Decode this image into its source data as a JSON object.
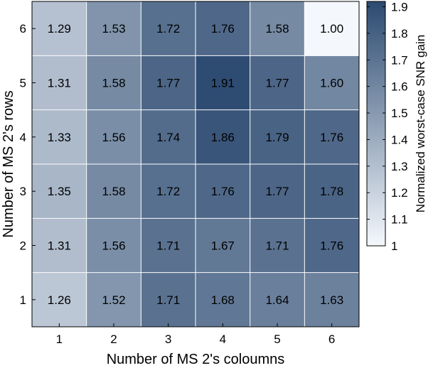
{
  "chart_data": {
    "type": "heatmap",
    "title": "",
    "xlabel": "Number of MS 2's coloumns",
    "ylabel": "Number of MS 2's rows",
    "colorbar_label": "Normalized worst-case SNR gain",
    "x_categories": [
      "1",
      "2",
      "3",
      "4",
      "5",
      "6"
    ],
    "y_categories": [
      "1",
      "2",
      "3",
      "4",
      "5",
      "6"
    ],
    "values": [
      [
        1.26,
        1.52,
        1.71,
        1.68,
        1.64,
        1.63
      ],
      [
        1.31,
        1.56,
        1.71,
        1.67,
        1.71,
        1.76
      ],
      [
        1.35,
        1.58,
        1.72,
        1.76,
        1.77,
        1.78
      ],
      [
        1.33,
        1.56,
        1.74,
        1.86,
        1.79,
        1.76
      ],
      [
        1.31,
        1.58,
        1.77,
        1.91,
        1.77,
        1.6
      ],
      [
        1.29,
        1.53,
        1.72,
        1.76,
        1.58,
        1.0
      ]
    ],
    "value_labels": [
      [
        "1.26",
        "1.52",
        "1.71",
        "1.68",
        "1.64",
        "1.63"
      ],
      [
        "1.31",
        "1.56",
        "1.71",
        "1.67",
        "1.71",
        "1.76"
      ],
      [
        "1.35",
        "1.58",
        "1.72",
        "1.76",
        "1.77",
        "1.78"
      ],
      [
        "1.33",
        "1.56",
        "1.74",
        "1.86",
        "1.79",
        "1.76"
      ],
      [
        "1.31",
        "1.58",
        "1.77",
        "1.91",
        "1.77",
        "1.60"
      ],
      [
        "1.29",
        "1.53",
        "1.72",
        "1.76",
        "1.58",
        "1.00"
      ]
    ],
    "colorbar": {
      "range": [
        1,
        1.92
      ],
      "ticks": [
        1,
        1.1,
        1.2,
        1.3,
        1.4,
        1.5,
        1.6,
        1.7,
        1.8,
        1.9
      ],
      "tick_labels": [
        "1",
        "1.1",
        "1.2",
        "1.3",
        "1.4",
        "1.5",
        "1.6",
        "1.7",
        "1.8",
        "1.9"
      ]
    },
    "colors": {
      "low": "#f4f8fd",
      "high": "#2c4a70",
      "grid": "#ffffff"
    },
    "grid": true,
    "legend": "colorbar-right"
  }
}
